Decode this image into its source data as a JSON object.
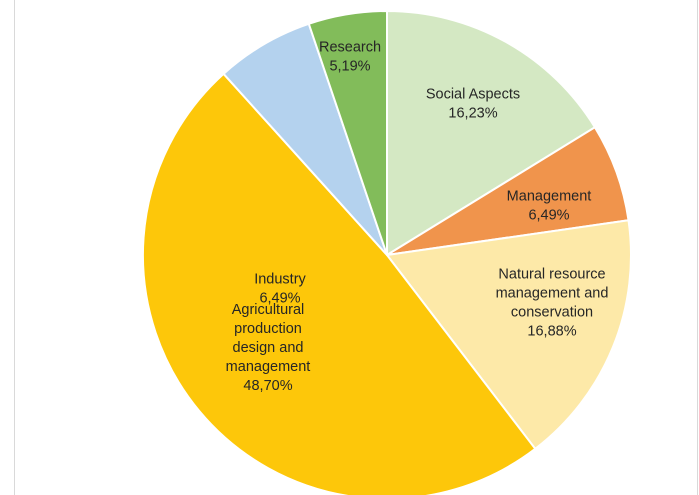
{
  "chart_data": {
    "type": "pie",
    "start_angle_deg": 0,
    "direction": "clockwise",
    "slices": [
      {
        "name": "Social Aspects",
        "value": 16.23,
        "label": [
          "Social Aspects",
          "16,23%"
        ],
        "color": "#d4e8c3"
      },
      {
        "name": "Management",
        "value": 6.49,
        "label": [
          "Management",
          "6,49%"
        ],
        "color": "#f0944c"
      },
      {
        "name": "Natural resource management and conservation",
        "value": 16.88,
        "label": [
          "Natural resource",
          "management and",
          "conservation",
          "16,88%"
        ],
        "color": "#fde9a8"
      },
      {
        "name": "Agricultural production design and management",
        "value": 48.7,
        "label": [
          "Agricultural",
          "production",
          "design and",
          "management",
          "48,70%"
        ],
        "color": "#fdc70a"
      },
      {
        "name": "Industry",
        "value": 6.49,
        "label": [
          "Industry",
          "6,49%"
        ],
        "color": "#b4d2ee"
      },
      {
        "name": "Research",
        "value": 5.19,
        "label": [
          "Research",
          "5,19%"
        ],
        "color": "#82bc5a"
      }
    ],
    "slice_border_color": "#ffffff"
  }
}
